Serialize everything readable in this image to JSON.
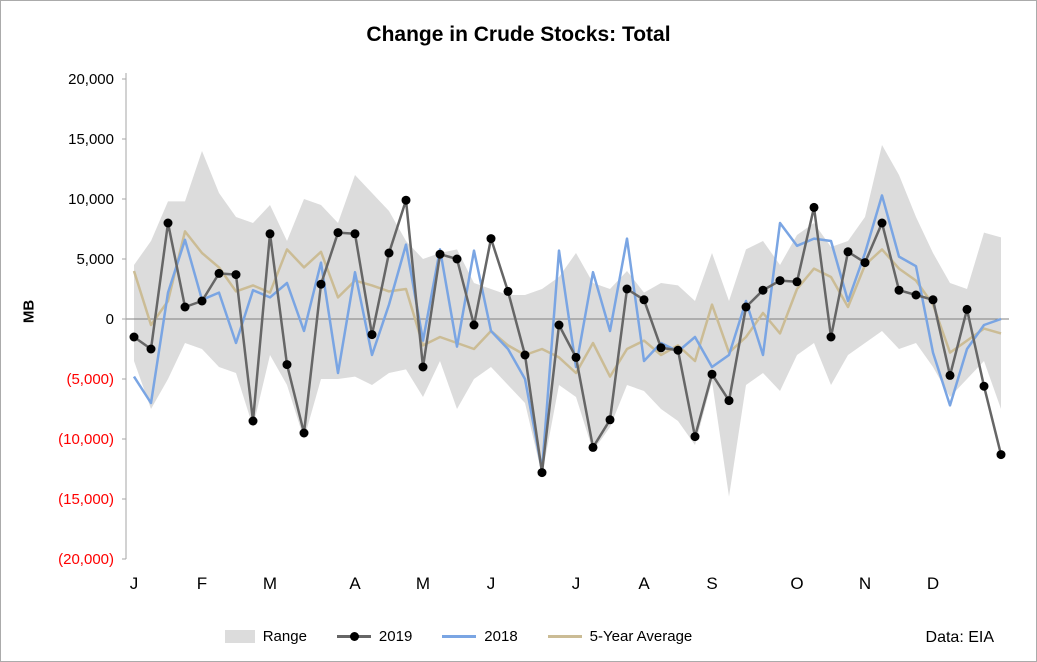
{
  "title": "Change in Crude Stocks: Total",
  "ylabel": "MB",
  "note": "Data: EIA",
  "legend": {
    "range": "Range",
    "s2019": "2019",
    "s2018": "2018",
    "avg": "5-Year Average"
  },
  "colors": {
    "range_fill": "#dcdcdc",
    "s2019_line": "#666666",
    "s2019_marker": "#000000",
    "s2018_line": "#7aa5e3",
    "avg_line": "#cbbc95",
    "axis": "#a6a6a6",
    "zero_line": "#808080",
    "tick_positive": "#000000",
    "tick_negative": "#ff0000",
    "border": "#ababab"
  },
  "chart_data": {
    "type": "line",
    "title": "Change in Crude Stocks: Total",
    "ylabel": "MB",
    "ylim": [
      -20000,
      20000
    ],
    "y_ticks": [
      20000,
      15000,
      10000,
      5000,
      0,
      -5000,
      -10000,
      -15000,
      -20000
    ],
    "x_tick_labels": [
      "J",
      "F",
      "M",
      "A",
      "M",
      "J",
      "J",
      "A",
      "S",
      "O",
      "N",
      "D"
    ],
    "x_tick_weeks": [
      1,
      5,
      9,
      14,
      18,
      22,
      27,
      31,
      35,
      40,
      44,
      48
    ],
    "weeks": 52,
    "grid": false,
    "legend_position": "bottom",
    "note": "Data: EIA",
    "series": [
      {
        "name": "2019",
        "values": [
          -1500,
          -2500,
          8000,
          1000,
          1500,
          3800,
          3700,
          -8500,
          7100,
          -3800,
          -9500,
          2900,
          7200,
          7100,
          -1300,
          5500,
          9900,
          -4000,
          5400,
          5000,
          -500,
          6700,
          2300,
          -3000,
          -12800,
          -500,
          -3200,
          -10700,
          -8400,
          2500,
          1600,
          -2400,
          -2600,
          -9800,
          -4600,
          -6800,
          1000,
          2400,
          3200,
          3100,
          9300,
          -1500,
          5600,
          4700,
          8000,
          2400,
          2000,
          1600,
          -4700,
          800,
          -5600,
          -11300
        ]
      },
      {
        "name": "2018",
        "values": [
          -4800,
          -7000,
          2200,
          6600,
          1600,
          2200,
          -2000,
          2400,
          1800,
          3000,
          -1000,
          4700,
          -4500,
          3900,
          -3000,
          1200,
          6200,
          -1800,
          5800,
          -2300,
          5700,
          -1000,
          -2500,
          -5000,
          -12600,
          5700,
          -4000,
          3900,
          -1000,
          6700,
          -3500,
          -2000,
          -2700,
          -1500,
          -4000,
          -3000,
          1500,
          -3000,
          8000,
          6100,
          6700,
          6500,
          1500,
          5500,
          10300,
          5200,
          4400,
          -2800,
          -7200,
          -2500,
          -500,
          0
        ]
      },
      {
        "name": "5-Year Average",
        "values": [
          4000,
          -500,
          1500,
          7300,
          5500,
          4300,
          2300,
          2800,
          2200,
          5800,
          4300,
          5600,
          1800,
          3200,
          2800,
          2300,
          2500,
          -2200,
          -1500,
          -2000,
          -2500,
          -1000,
          -2200,
          -3000,
          -2500,
          -3200,
          -4500,
          -2000,
          -4800,
          -2500,
          -1800,
          -3000,
          -2200,
          -3500,
          1200,
          -2800,
          -1500,
          500,
          -1200,
          2500,
          4200,
          3500,
          1000,
          4500,
          5800,
          4200,
          3200,
          1200,
          -2800,
          -1800,
          -800,
          -1200
        ]
      }
    ],
    "range": {
      "name": "Range",
      "max": [
        4500,
        6500,
        9800,
        9800,
        14000,
        10500,
        8500,
        8000,
        9500,
        6500,
        10000,
        9500,
        8000,
        12000,
        10500,
        9000,
        6500,
        5000,
        5500,
        5800,
        3000,
        2500,
        2000,
        2000,
        2500,
        3500,
        5500,
        3000,
        2500,
        4000,
        2200,
        3000,
        2800,
        1500,
        5500,
        1500,
        5800,
        6500,
        4500,
        7000,
        8000,
        6000,
        6500,
        8500,
        14500,
        12000,
        8500,
        5500,
        3000,
        2500,
        7200,
        6800
      ],
      "min": [
        -3500,
        -7500,
        -5000,
        -2000,
        -2500,
        -4000,
        -4500,
        -9000,
        -3000,
        -5500,
        -10000,
        -5000,
        -5000,
        -4800,
        -5500,
        -4500,
        -4200,
        -6500,
        -3500,
        -7500,
        -5000,
        -4000,
        -5500,
        -7000,
        -13000,
        -5500,
        -6500,
        -11000,
        -9000,
        -5500,
        -6000,
        -7500,
        -8500,
        -10500,
        -5200,
        -14800,
        -5500,
        -4500,
        -6000,
        -3000,
        -2000,
        -5500,
        -3000,
        -2000,
        -1000,
        -2500,
        -2000,
        -4000,
        -6500,
        -5000,
        -3500,
        -7500
      ]
    }
  }
}
